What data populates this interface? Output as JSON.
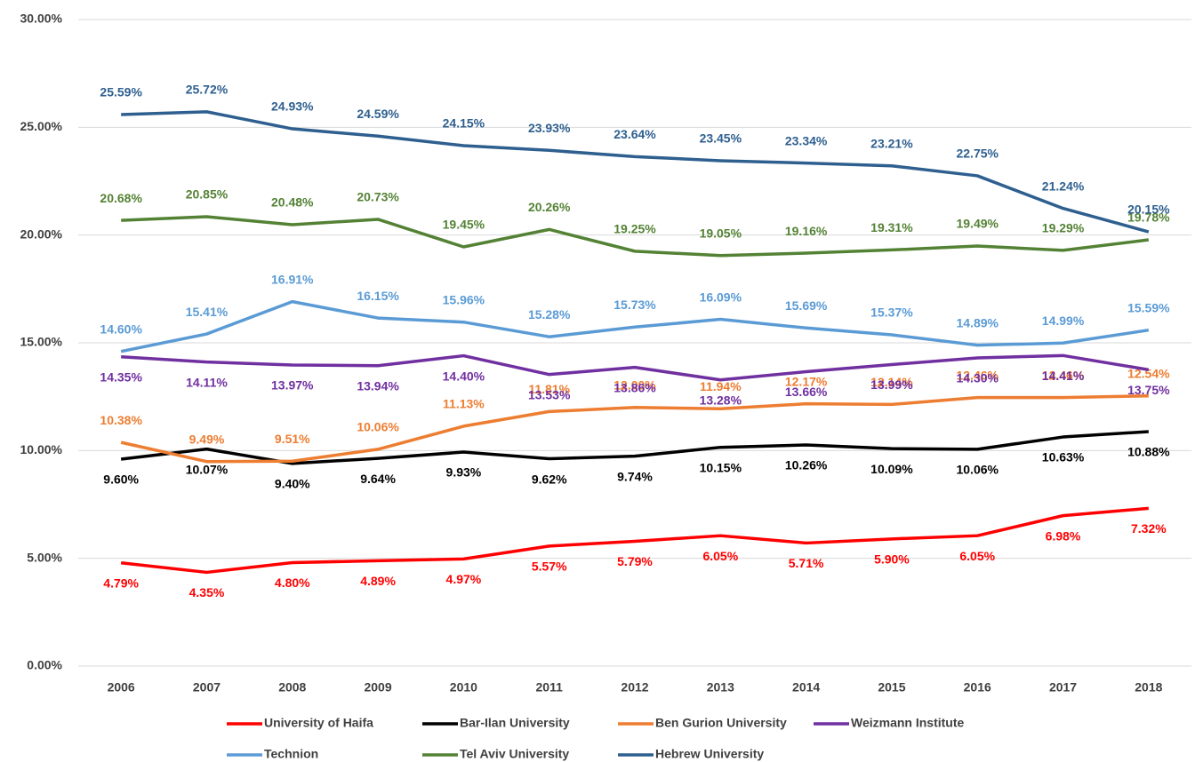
{
  "chart_data": {
    "type": "line",
    "categories": [
      "2006",
      "2007",
      "2008",
      "2009",
      "2010",
      "2011",
      "2012",
      "2013",
      "2014",
      "2015",
      "2016",
      "2017",
      "2018"
    ],
    "ylim": [
      0,
      30
    ],
    "yticks": [
      {
        "value": 0,
        "label": "0.00%"
      },
      {
        "value": 5,
        "label": "5.00%"
      },
      {
        "value": 10,
        "label": "10.00%"
      },
      {
        "value": 15,
        "label": "15.00%"
      },
      {
        "value": 20,
        "label": "20.00%"
      },
      {
        "value": 25,
        "label": "25.00%"
      },
      {
        "value": 30,
        "label": "30.00%"
      }
    ],
    "grid": true,
    "legend": "bottom",
    "series": [
      {
        "name": "University of Haifa",
        "color": "#ff0000",
        "values": [
          4.79,
          4.35,
          4.8,
          4.89,
          4.97,
          5.57,
          5.79,
          6.05,
          5.71,
          5.9,
          6.05,
          6.98,
          7.32
        ],
        "value_labels": [
          "4.79%",
          "4.35%",
          "4.80%",
          "4.89%",
          "4.97%",
          "5.57%",
          "5.79%",
          "6.05%",
          "5.71%",
          "5.90%",
          "6.05%",
          "6.98%",
          "7.32%"
        ]
      },
      {
        "name": "Bar-Ilan University",
        "color": "#000000",
        "values": [
          9.6,
          10.07,
          9.4,
          9.64,
          9.93,
          9.62,
          9.74,
          10.15,
          10.26,
          10.09,
          10.06,
          10.63,
          10.88
        ],
        "value_labels": [
          "9.60%",
          "10.07%",
          "9.40%",
          "9.64%",
          "9.93%",
          "9.62%",
          "9.74%",
          "10.15%",
          "10.26%",
          "10.09%",
          "10.06%",
          "10.63%",
          "10.88%"
        ]
      },
      {
        "name": "Ben Gurion University",
        "color": "#ed7d31",
        "values": [
          10.38,
          9.49,
          9.51,
          10.06,
          11.13,
          11.81,
          12.0,
          11.94,
          12.17,
          12.14,
          12.46,
          12.46,
          12.54
        ],
        "value_labels": [
          "10.38%",
          "9.49%",
          "9.51%",
          "10.06%",
          "11.13%",
          "11.81%",
          "12.00%",
          "11.94%",
          "12.17%",
          "12.14%",
          "12.46%",
          "12.46%",
          "12.54%"
        ]
      },
      {
        "name": "Weizmann Institute",
        "color": "#7030a0",
        "values": [
          14.35,
          14.11,
          13.97,
          13.94,
          14.4,
          13.53,
          13.86,
          13.28,
          13.66,
          13.99,
          14.3,
          14.41,
          13.75
        ],
        "value_labels": [
          "14.35%",
          "14.11%",
          "13.97%",
          "13.94%",
          "14.40%",
          "13.53%",
          "13.86%",
          "13.28%",
          "13.66%",
          "13.99%",
          "14.30%",
          "14.41%",
          "13.75%"
        ]
      },
      {
        "name": "Technion",
        "color": "#5b9bd5",
        "values": [
          14.6,
          15.41,
          16.91,
          16.15,
          15.96,
          15.28,
          15.73,
          16.09,
          15.69,
          15.37,
          14.89,
          14.99,
          15.59
        ],
        "value_labels": [
          "14.60%",
          "15.41%",
          "16.91%",
          "16.15%",
          "15.96%",
          "15.28%",
          "15.73%",
          "16.09%",
          "15.69%",
          "15.37%",
          "14.89%",
          "14.99%",
          "15.59%"
        ]
      },
      {
        "name": "Tel Aviv University",
        "color": "#548235",
        "values": [
          20.68,
          20.85,
          20.48,
          20.73,
          19.45,
          20.26,
          19.25,
          19.05,
          19.16,
          19.31,
          19.49,
          19.29,
          19.78
        ],
        "value_labels": [
          "20.68%",
          "20.85%",
          "20.48%",
          "20.73%",
          "19.45%",
          "20.26%",
          "19.25%",
          "19.05%",
          "19.16%",
          "19.31%",
          "19.49%",
          "19.29%",
          "19.78%"
        ]
      },
      {
        "name": "Hebrew University",
        "color": "#2e5f8f",
        "values": [
          25.59,
          25.72,
          24.93,
          24.59,
          24.15,
          23.93,
          23.64,
          23.45,
          23.34,
          23.21,
          22.75,
          21.24,
          20.15
        ],
        "value_labels": [
          "25.59%",
          "25.72%",
          "24.93%",
          "24.59%",
          "24.15%",
          "23.93%",
          "23.64%",
          "23.45%",
          "23.34%",
          "23.21%",
          "22.75%",
          "21.24%",
          "20.15%"
        ]
      }
    ]
  }
}
